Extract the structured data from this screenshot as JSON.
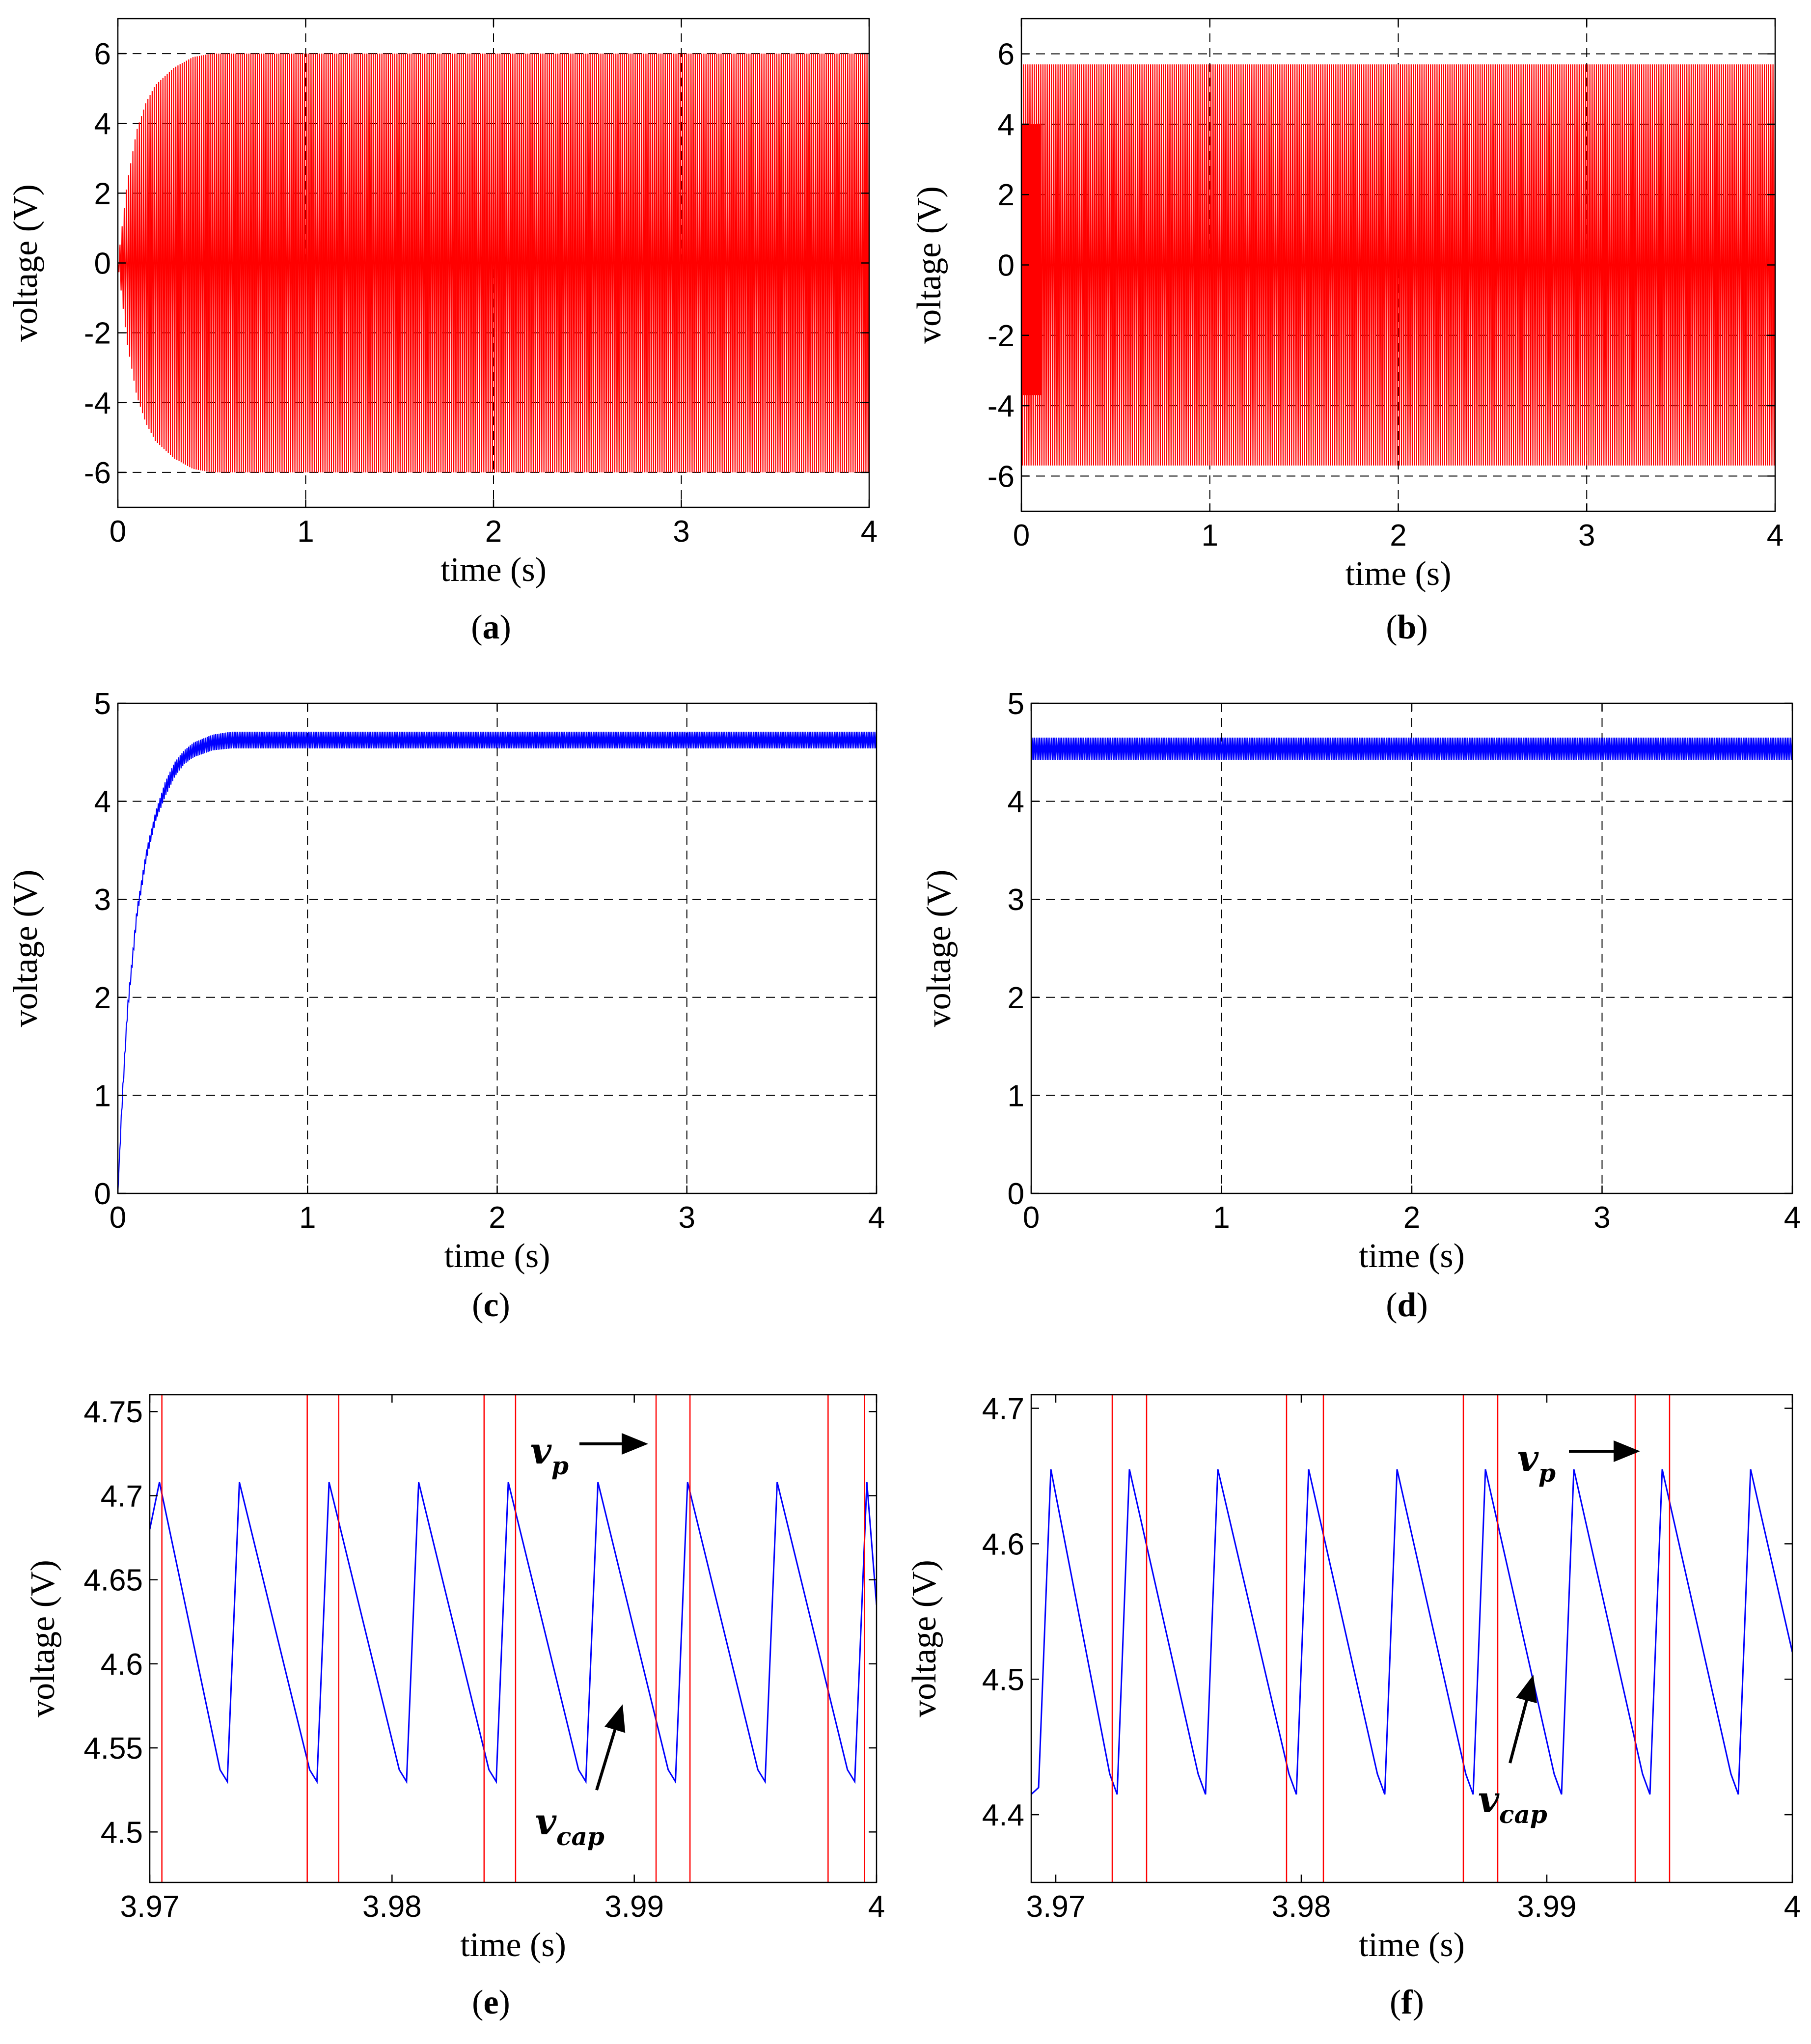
{
  "chart_data": [
    {
      "panel": "a",
      "type": "line",
      "caption": "a",
      "xlabel": "time (s)",
      "ylabel": "voltage (V)",
      "xlim": [
        0,
        4
      ],
      "ylim": [
        -7,
        7
      ],
      "xticks": [
        0,
        1,
        2,
        3,
        4
      ],
      "yticks": [
        -6,
        -4,
        -2,
        0,
        2,
        4,
        6
      ],
      "grid": true,
      "color": "#ff0000",
      "series": [
        {
          "kind": "oscillation_envelope",
          "x": [
            0,
            0.05,
            0.1,
            0.15,
            0.2,
            0.3,
            0.4,
            0.5,
            0.6,
            1,
            2,
            3,
            4
          ],
          "upper": [
            0,
            2.3,
            3.8,
            4.6,
            5.1,
            5.6,
            5.9,
            6.0,
            6.0,
            6.0,
            6.0,
            6.0,
            6.0
          ],
          "lower": [
            0,
            -2.3,
            -3.8,
            -4.6,
            -5.1,
            -5.6,
            -5.9,
            -6.0,
            -6.0,
            -6.0,
            -6.0,
            -6.0,
            -6.0
          ]
        }
      ]
    },
    {
      "panel": "b",
      "type": "line",
      "caption": "b",
      "xlabel": "time (s)",
      "ylabel": "voltage (V)",
      "xlim": [
        0,
        4
      ],
      "ylim": [
        -7,
        7
      ],
      "xticks": [
        0,
        1,
        2,
        3,
        4
      ],
      "yticks": [
        -6,
        -4,
        -2,
        0,
        2,
        4,
        6
      ],
      "grid": true,
      "color": "#ff0000",
      "series": [
        {
          "kind": "oscillation_envelope",
          "x": [
            0,
            0.1,
            0.12,
            4
          ],
          "upper": [
            5.7,
            5.7,
            5.7,
            5.7
          ],
          "lower": [
            -5.7,
            -5.7,
            -5.7,
            -5.7
          ]
        },
        {
          "kind": "initial_burst",
          "x": [
            0,
            0.1
          ],
          "upper": [
            4,
            4
          ],
          "lower": [
            -3.7,
            -3.7
          ]
        }
      ]
    },
    {
      "panel": "c",
      "type": "line",
      "caption": "c",
      "xlabel": "time (s)",
      "ylabel": "voltage (V)",
      "xlim": [
        0,
        4
      ],
      "ylim": [
        0,
        5
      ],
      "xticks": [
        0,
        1,
        2,
        3,
        4
      ],
      "yticks": [
        0,
        1,
        2,
        3,
        4,
        5
      ],
      "grid": true,
      "color": "#0000ff",
      "series": [
        {
          "kind": "ripple_band",
          "x": [
            0,
            0.02,
            0.05,
            0.1,
            0.15,
            0.2,
            0.25,
            0.3,
            0.35,
            0.4,
            0.5,
            0.6,
            0.8,
            1,
            2,
            3,
            4
          ],
          "upper": [
            0,
            0.9,
            1.9,
            2.9,
            3.5,
            3.9,
            4.2,
            4.4,
            4.52,
            4.6,
            4.68,
            4.71,
            4.71,
            4.71,
            4.71,
            4.71,
            4.71
          ],
          "lower": [
            0,
            0.8,
            1.8,
            2.8,
            3.4,
            3.8,
            4.05,
            4.25,
            4.38,
            4.45,
            4.52,
            4.54,
            4.54,
            4.54,
            4.54,
            4.54,
            4.54
          ]
        }
      ]
    },
    {
      "panel": "d",
      "type": "line",
      "caption": "d",
      "xlabel": "time (s)",
      "ylabel": "voltage (V)",
      "xlim": [
        0,
        4
      ],
      "ylim": [
        0,
        5
      ],
      "xticks": [
        0,
        1,
        2,
        3,
        4
      ],
      "yticks": [
        0,
        1,
        2,
        3,
        4,
        5
      ],
      "grid": true,
      "color": "#0000ff",
      "series": [
        {
          "kind": "ripple_band",
          "x": [
            0,
            4
          ],
          "upper": [
            4.65,
            4.65
          ],
          "lower": [
            4.42,
            4.42
          ]
        }
      ]
    },
    {
      "panel": "e",
      "type": "line",
      "caption": "e",
      "xlabel": "time (s)",
      "ylabel": "voltage (V)",
      "xlim": [
        3.97,
        4
      ],
      "ylim": [
        4.47,
        4.76
      ],
      "xticks": [
        3.97,
        3.98,
        3.99,
        4
      ],
      "yticks": [
        4.5,
        4.55,
        4.6,
        4.65,
        4.7,
        4.75
      ],
      "grid": false,
      "series": [
        {
          "name": "v_cap",
          "color": "#0000ff",
          "x": [
            3.97,
            3.9704,
            3.9729,
            3.9732,
            3.9737,
            3.9766,
            3.9769,
            3.9774,
            3.9803,
            3.9806,
            3.9811,
            3.984,
            3.9843,
            3.9848,
            3.9877,
            3.988,
            3.9885,
            3.9914,
            3.9917,
            3.9922,
            3.9951,
            3.9954,
            3.9959,
            3.9988,
            3.9991,
            3.9996,
            4.0
          ],
          "y": [
            4.68,
            4.708,
            4.537,
            4.53,
            4.708,
            4.537,
            4.53,
            4.708,
            4.537,
            4.53,
            4.708,
            4.537,
            4.53,
            4.708,
            4.537,
            4.53,
            4.708,
            4.537,
            4.53,
            4.708,
            4.537,
            4.53,
            4.708,
            4.537,
            4.53,
            4.708,
            4.635
          ]
        },
        {
          "name": "v_p",
          "color": "#ff0000",
          "kind": "pulses",
          "x": [
            3.9705,
            3.9765,
            3.9778,
            3.9838,
            3.9851,
            3.9909,
            3.9923,
            3.998,
            3.9995
          ]
        }
      ],
      "annotations": [
        {
          "text": "v",
          "sub": "p"
        },
        {
          "text": "v",
          "sub": "cap"
        }
      ]
    },
    {
      "panel": "f",
      "type": "line",
      "caption": "f",
      "xlabel": "time (s)",
      "ylabel": "voltage (V)",
      "xlim": [
        3.969,
        4
      ],
      "ylim": [
        4.35,
        4.71
      ],
      "xticks": [
        3.97,
        3.98,
        3.99,
        4
      ],
      "yticks": [
        4.4,
        4.5,
        4.6,
        4.7
      ],
      "grid": false,
      "series": [
        {
          "name": "v_cap",
          "color": "#0000ff",
          "x": [
            3.969,
            3.9693,
            3.9698,
            3.9722,
            3.9725,
            3.973,
            3.9758,
            3.9761,
            3.9766,
            3.9795,
            3.9798,
            3.9803,
            3.9831,
            3.9834,
            3.9839,
            3.9867,
            3.987,
            3.9875,
            3.9903,
            3.9906,
            3.9911,
            3.9939,
            3.9942,
            3.9947,
            3.9975,
            3.9978,
            3.9983,
            4.0
          ],
          "y": [
            4.415,
            4.42,
            4.655,
            4.43,
            4.415,
            4.655,
            4.43,
            4.415,
            4.655,
            4.43,
            4.415,
            4.655,
            4.43,
            4.415,
            4.655,
            4.43,
            4.415,
            4.655,
            4.43,
            4.415,
            4.655,
            4.43,
            4.415,
            4.655,
            4.43,
            4.415,
            4.655,
            4.52
          ]
        },
        {
          "name": "v_p",
          "color": "#ff0000",
          "kind": "pulses",
          "x": [
            3.9723,
            3.9737,
            3.9794,
            3.9809,
            3.9866,
            3.988,
            3.9936,
            3.995
          ]
        }
      ],
      "annotations": [
        {
          "text": "v",
          "sub": "p"
        },
        {
          "text": "v",
          "sub": "cap"
        }
      ]
    }
  ]
}
